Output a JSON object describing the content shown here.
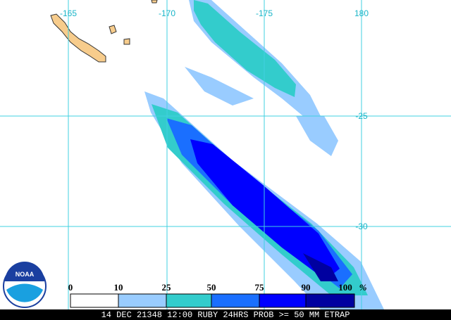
{
  "map": {
    "lon_labels": [
      "-165",
      "-170",
      "-175",
      "180"
    ],
    "lat_labels": [
      "-25",
      "-30"
    ],
    "legend": {
      "labels": [
        "0",
        "10",
        "25",
        "50",
        "75",
        "90",
        "100"
      ],
      "unit": "%",
      "colors": [
        "#ffffff",
        "#99ccff",
        "#33cccc",
        "#1a6fff",
        "#0000ff",
        "#0000a0"
      ]
    },
    "logo": "NOAA",
    "footer": "14 DEC 21348 12:00 RUBY 24HRS PROB >= 50 MM ETRAP"
  }
}
